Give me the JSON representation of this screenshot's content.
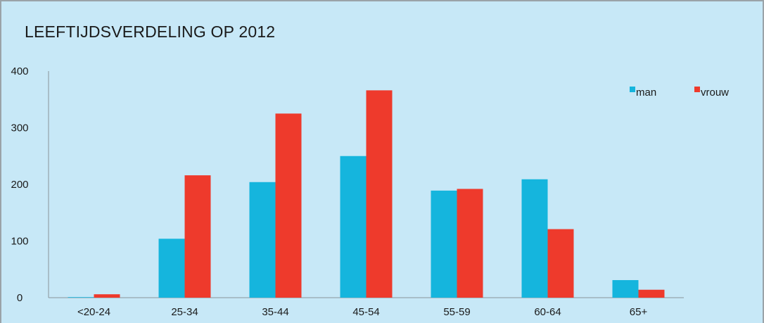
{
  "chart_data": {
    "type": "bar",
    "title": "LEEFTIJDSVERDELING OP 2012",
    "xlabel": "",
    "ylabel": "",
    "categories": [
      "<20-24",
      "25-34",
      "35-44",
      "45-54",
      "55-59",
      "60-64",
      "65+"
    ],
    "series": [
      {
        "name": "man",
        "values": [
          1,
          104,
          204,
          250,
          189,
          209,
          31
        ],
        "color": "#15b5dd"
      },
      {
        "name": "vrouw",
        "values": [
          6,
          216,
          325,
          366,
          192,
          121,
          14
        ],
        "color": "#ee3a2c"
      }
    ],
    "ylim": [
      0,
      400
    ],
    "yticks": [
      0,
      100,
      200,
      300,
      400
    ],
    "grid": false,
    "legend_position": "top-right"
  },
  "colors": {
    "background": "#c7e8f7",
    "axis": "#8a959a"
  }
}
